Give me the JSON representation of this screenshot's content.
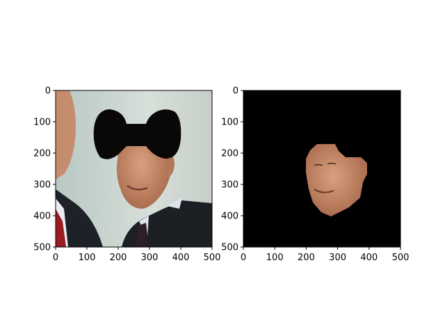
{
  "chart_data": [
    {
      "type": "image",
      "title": "",
      "xlabel": "",
      "ylabel": "",
      "xlim": [
        0,
        500
      ],
      "ylim": [
        500,
        0
      ],
      "xticks": [
        0,
        100,
        200,
        300,
        400,
        500
      ],
      "yticks": [
        0,
        100,
        200,
        300,
        400,
        500
      ],
      "content": "photo with black bow-tie shaped mask over upper face region",
      "colors": {
        "sky": "#c9d5cf",
        "suit": "#1f2226",
        "skin": "#c48a6a",
        "mask": "#0a0807"
      }
    },
    {
      "type": "image",
      "title": "",
      "xlabel": "",
      "ylabel": "",
      "xlim": [
        0,
        500
      ],
      "ylim": [
        500,
        0
      ],
      "xticks": [
        0,
        100,
        200,
        300,
        400,
        500
      ],
      "yticks": [
        0,
        100,
        200,
        300,
        400,
        500
      ],
      "content": "segmented face on black background",
      "colors": {
        "background": "#000000",
        "skin": "#c48a6a"
      }
    }
  ]
}
